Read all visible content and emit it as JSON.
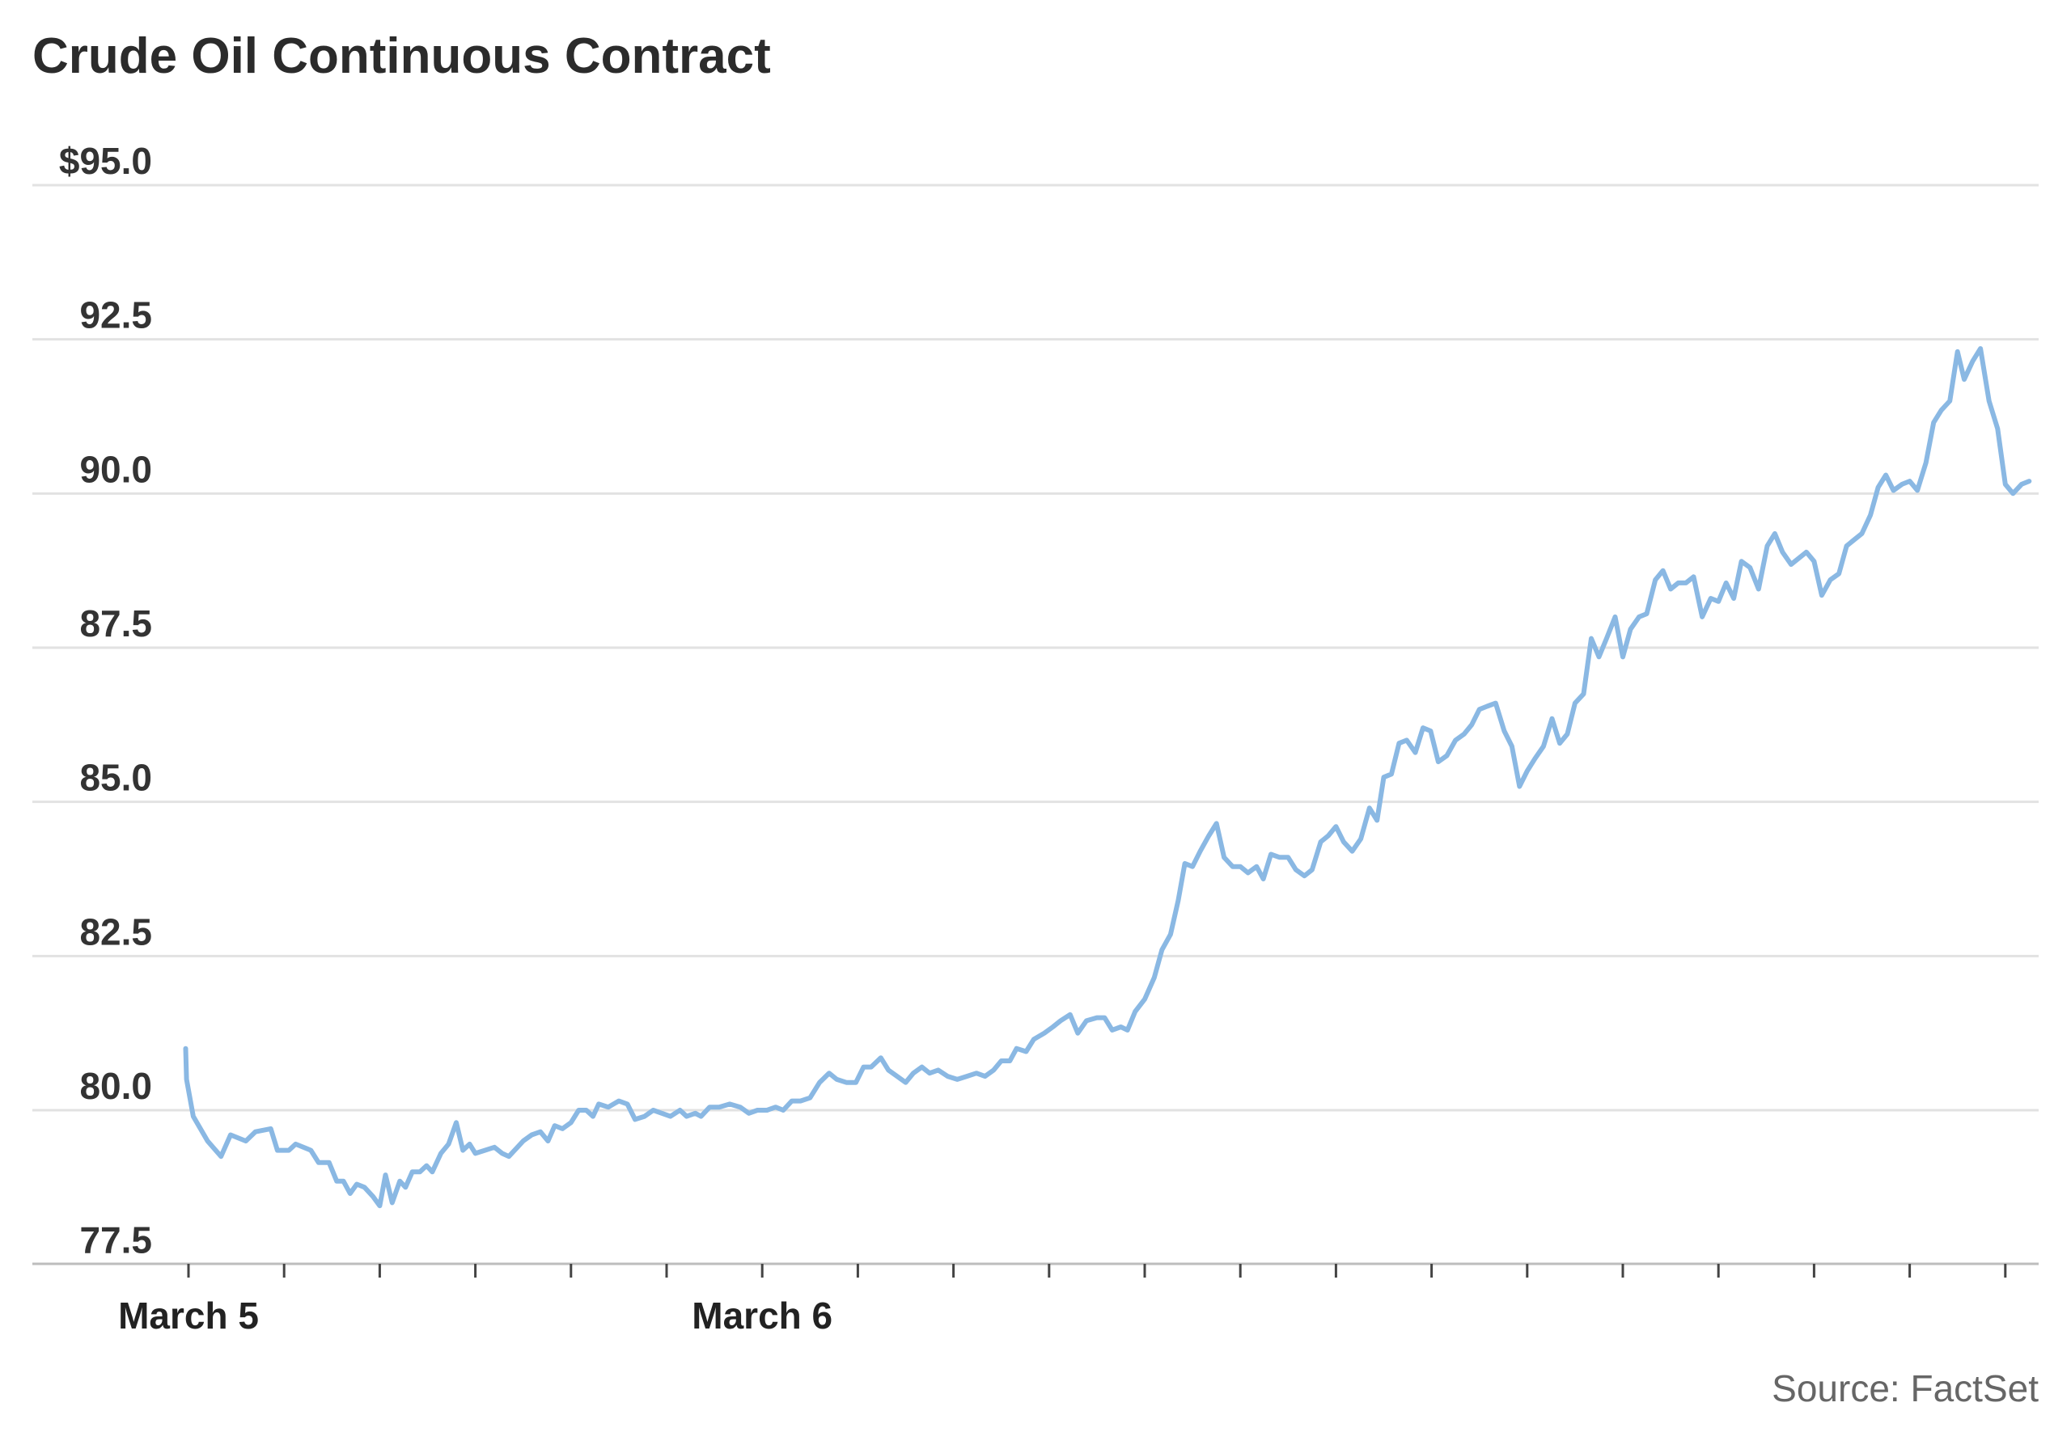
{
  "chart_data": {
    "type": "line",
    "title": "Crude Oil Continuous Contract",
    "source": "Source: FactSet",
    "ylim": [
      77.0,
      95.0
    ],
    "y_ticks": [
      {
        "value": 95.0,
        "label": "$95.0"
      },
      {
        "value": 92.5,
        "label": "92.5"
      },
      {
        "value": 90.0,
        "label": "90.0"
      },
      {
        "value": 87.5,
        "label": "87.5"
      },
      {
        "value": 85.0,
        "label": "85.0"
      },
      {
        "value": 82.5,
        "label": "82.5"
      },
      {
        "value": 80.0,
        "label": "80.0"
      },
      {
        "value": 77.5,
        "label": "77.5"
      }
    ],
    "x_labels": [
      {
        "value": 0,
        "label": "March 5"
      },
      {
        "value": 6,
        "label": "March 6"
      }
    ],
    "x_ticks": [
      0,
      1,
      2,
      3,
      4,
      5,
      6,
      7,
      8,
      9,
      10,
      11,
      12,
      13,
      14,
      15,
      16,
      17,
      18,
      19
    ],
    "xlim": [
      0,
      19.35
    ],
    "grid": true,
    "color": "#8ab8e3",
    "series": [
      {
        "values": [
          [
            -0.03,
            81.0
          ],
          [
            -0.02,
            80.5
          ],
          [
            0.05,
            79.9
          ],
          [
            0.2,
            79.5
          ],
          [
            0.34,
            79.25
          ],
          [
            0.44,
            79.6
          ],
          [
            0.6,
            79.5
          ],
          [
            0.7,
            79.65
          ],
          [
            0.86,
            79.7
          ],
          [
            0.93,
            79.35
          ],
          [
            1.05,
            79.35
          ],
          [
            1.12,
            79.45
          ],
          [
            1.28,
            79.35
          ],
          [
            1.36,
            79.15
          ],
          [
            1.47,
            79.15
          ],
          [
            1.55,
            78.85
          ],
          [
            1.62,
            78.85
          ],
          [
            1.69,
            78.65
          ],
          [
            1.76,
            78.8
          ],
          [
            1.84,
            78.75
          ],
          [
            1.93,
            78.6
          ],
          [
            2.0,
            78.45
          ],
          [
            2.06,
            78.95
          ],
          [
            2.13,
            78.5
          ],
          [
            2.21,
            78.85
          ],
          [
            2.27,
            78.75
          ],
          [
            2.34,
            79.0
          ],
          [
            2.42,
            79.0
          ],
          [
            2.49,
            79.1
          ],
          [
            2.55,
            79.0
          ],
          [
            2.64,
            79.3
          ],
          [
            2.72,
            79.45
          ],
          [
            2.8,
            79.8
          ],
          [
            2.87,
            79.35
          ],
          [
            2.94,
            79.45
          ],
          [
            3.0,
            79.3
          ],
          [
            3.1,
            79.35
          ],
          [
            3.2,
            79.4
          ],
          [
            3.28,
            79.3
          ],
          [
            3.35,
            79.25
          ],
          [
            3.44,
            79.4
          ],
          [
            3.5,
            79.5
          ],
          [
            3.59,
            79.6
          ],
          [
            3.68,
            79.65
          ],
          [
            3.76,
            79.5
          ],
          [
            3.83,
            79.75
          ],
          [
            3.91,
            79.7
          ],
          [
            4.0,
            79.8
          ],
          [
            4.08,
            80.0
          ],
          [
            4.16,
            80.0
          ],
          [
            4.23,
            79.9
          ],
          [
            4.29,
            80.1
          ],
          [
            4.39,
            80.05
          ],
          [
            4.5,
            80.15
          ],
          [
            4.59,
            80.1
          ],
          [
            4.67,
            79.85
          ],
          [
            4.77,
            79.9
          ],
          [
            4.86,
            80.0
          ],
          [
            4.95,
            79.95
          ],
          [
            5.04,
            79.9
          ],
          [
            5.14,
            80.0
          ],
          [
            5.21,
            79.9
          ],
          [
            5.3,
            79.95
          ],
          [
            5.36,
            79.9
          ],
          [
            5.45,
            80.05
          ],
          [
            5.55,
            80.05
          ],
          [
            5.66,
            80.1
          ],
          [
            5.77,
            80.05
          ],
          [
            5.86,
            79.95
          ],
          [
            5.95,
            80.0
          ],
          [
            6.05,
            80.0
          ],
          [
            6.14,
            80.05
          ],
          [
            6.22,
            80.0
          ],
          [
            6.31,
            80.15
          ],
          [
            6.4,
            80.15
          ],
          [
            6.5,
            80.2
          ],
          [
            6.6,
            80.45
          ],
          [
            6.7,
            80.6
          ],
          [
            6.78,
            80.5
          ],
          [
            6.88,
            80.45
          ],
          [
            6.98,
            80.45
          ],
          [
            7.06,
            80.7
          ],
          [
            7.14,
            80.7
          ],
          [
            7.24,
            80.85
          ],
          [
            7.32,
            80.65
          ],
          [
            7.41,
            80.55
          ],
          [
            7.5,
            80.45
          ],
          [
            7.58,
            80.6
          ],
          [
            7.67,
            80.7
          ],
          [
            7.75,
            80.6
          ],
          [
            7.84,
            80.65
          ],
          [
            7.94,
            80.55
          ],
          [
            8.04,
            80.5
          ],
          [
            8.14,
            80.55
          ],
          [
            8.24,
            80.6
          ],
          [
            8.33,
            80.55
          ],
          [
            8.42,
            80.65
          ],
          [
            8.5,
            80.8
          ],
          [
            8.59,
            80.8
          ],
          [
            8.66,
            81.0
          ],
          [
            8.76,
            80.95
          ],
          [
            8.84,
            81.15
          ],
          [
            8.95,
            81.25
          ],
          [
            9.04,
            81.35
          ],
          [
            9.12,
            81.45
          ],
          [
            9.22,
            81.55
          ],
          [
            9.3,
            81.25
          ],
          [
            9.39,
            81.45
          ],
          [
            9.5,
            81.5
          ],
          [
            9.58,
            81.5
          ],
          [
            9.66,
            81.3
          ],
          [
            9.75,
            81.35
          ],
          [
            9.82,
            81.3
          ],
          [
            9.9,
            81.6
          ],
          [
            10.0,
            81.8
          ],
          [
            10.1,
            82.15
          ],
          [
            10.18,
            82.6
          ],
          [
            10.27,
            82.85
          ],
          [
            10.35,
            83.4
          ],
          [
            10.42,
            84.0
          ],
          [
            10.5,
            83.95
          ],
          [
            10.58,
            84.2
          ],
          [
            10.67,
            84.45
          ],
          [
            10.75,
            84.65
          ],
          [
            10.83,
            84.1
          ],
          [
            10.92,
            83.95
          ],
          [
            11.0,
            83.95
          ],
          [
            11.08,
            83.85
          ],
          [
            11.17,
            83.95
          ],
          [
            11.24,
            83.75
          ],
          [
            11.32,
            84.15
          ],
          [
            11.41,
            84.1
          ],
          [
            11.5,
            84.1
          ],
          [
            11.58,
            83.9
          ],
          [
            11.67,
            83.8
          ],
          [
            11.75,
            83.9
          ],
          [
            11.84,
            84.35
          ],
          [
            11.92,
            84.45
          ],
          [
            12.0,
            84.6
          ],
          [
            12.08,
            84.35
          ],
          [
            12.17,
            84.2
          ],
          [
            12.26,
            84.4
          ],
          [
            12.35,
            84.9
          ],
          [
            12.43,
            84.7
          ],
          [
            12.5,
            85.4
          ],
          [
            12.58,
            85.45
          ],
          [
            12.66,
            85.95
          ],
          [
            12.74,
            86.0
          ],
          [
            12.83,
            85.8
          ],
          [
            12.91,
            86.2
          ],
          [
            12.99,
            86.15
          ],
          [
            13.07,
            85.65
          ],
          [
            13.16,
            85.75
          ],
          [
            13.25,
            86.0
          ],
          [
            13.34,
            86.1
          ],
          [
            13.42,
            86.25
          ],
          [
            13.5,
            86.5
          ],
          [
            13.58,
            86.55
          ],
          [
            13.67,
            86.6
          ],
          [
            13.76,
            86.15
          ],
          [
            13.84,
            85.9
          ],
          [
            13.92,
            85.25
          ],
          [
            14.0,
            85.5
          ],
          [
            14.08,
            85.7
          ],
          [
            14.17,
            85.9
          ],
          [
            14.26,
            86.35
          ],
          [
            14.34,
            85.95
          ],
          [
            14.42,
            86.1
          ],
          [
            14.5,
            86.6
          ],
          [
            14.59,
            86.75
          ],
          [
            14.67,
            87.65
          ],
          [
            14.75,
            87.35
          ],
          [
            14.83,
            87.65
          ],
          [
            14.92,
            88.0
          ],
          [
            15.0,
            87.35
          ],
          [
            15.08,
            87.8
          ],
          [
            15.17,
            88.0
          ],
          [
            15.25,
            88.05
          ],
          [
            15.34,
            88.6
          ],
          [
            15.42,
            88.75
          ],
          [
            15.5,
            88.45
          ],
          [
            15.58,
            88.55
          ],
          [
            15.66,
            88.55
          ],
          [
            15.74,
            88.65
          ],
          [
            15.83,
            88.0
          ],
          [
            15.92,
            88.3
          ],
          [
            16.0,
            88.25
          ],
          [
            16.08,
            88.55
          ],
          [
            16.16,
            88.3
          ],
          [
            16.24,
            88.9
          ],
          [
            16.33,
            88.8
          ],
          [
            16.42,
            88.45
          ],
          [
            16.51,
            89.15
          ],
          [
            16.59,
            89.35
          ],
          [
            16.67,
            89.05
          ],
          [
            16.76,
            88.85
          ],
          [
            16.84,
            88.95
          ],
          [
            16.92,
            89.05
          ],
          [
            17.0,
            88.9
          ],
          [
            17.08,
            88.35
          ],
          [
            17.17,
            88.6
          ],
          [
            17.26,
            88.7
          ],
          [
            17.34,
            89.15
          ],
          [
            17.42,
            89.25
          ],
          [
            17.5,
            89.35
          ],
          [
            17.59,
            89.65
          ],
          [
            17.67,
            90.1
          ],
          [
            17.75,
            90.3
          ],
          [
            17.83,
            90.05
          ],
          [
            17.92,
            90.15
          ],
          [
            18.0,
            90.2
          ],
          [
            18.08,
            90.05
          ],
          [
            18.17,
            90.5
          ],
          [
            18.25,
            91.15
          ],
          [
            18.33,
            91.35
          ],
          [
            18.42,
            91.5
          ],
          [
            18.5,
            92.3
          ],
          [
            18.57,
            91.85
          ],
          [
            18.66,
            92.15
          ],
          [
            18.74,
            92.35
          ],
          [
            18.83,
            91.5
          ],
          [
            18.92,
            91.05
          ],
          [
            19.0,
            90.15
          ],
          [
            19.08,
            90.0
          ],
          [
            19.17,
            90.15
          ],
          [
            19.25,
            90.2
          ]
        ]
      }
    ]
  }
}
